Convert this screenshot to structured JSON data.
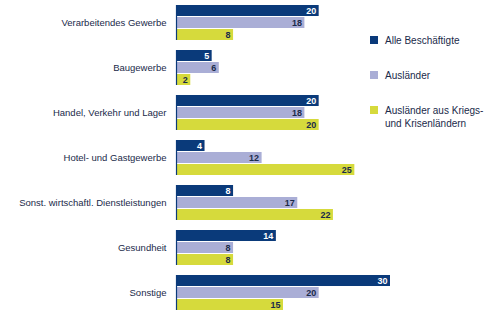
{
  "chart_data": {
    "type": "bar",
    "orientation": "horizontal",
    "categories": [
      "Verarbeitendes Gewerbe",
      "Baugewerbe",
      "Handel, Verkehr und Lager",
      "Hotel- und Gastgewerbe",
      "Sonst. wirtschaftl. Dienstleistungen",
      "Gesundheit",
      "Sonstige"
    ],
    "series": [
      {
        "name": "Alle Beschäftigte",
        "color": "#0a3a7a",
        "values": [
          20,
          5,
          20,
          4,
          8,
          14,
          30
        ]
      },
      {
        "name": "Ausländer",
        "color": "#aaaed6",
        "values": [
          18,
          6,
          18,
          12,
          17,
          8,
          20
        ]
      },
      {
        "name": "Ausländer aus Kriegs- und Krisenländern",
        "color": "#d6da3c",
        "values": [
          8,
          2,
          20,
          25,
          22,
          8,
          15
        ]
      }
    ],
    "xlim": [
      0,
      30
    ],
    "data_labels": true,
    "tick_labels": "y",
    "legend": "top-right",
    "grid": false
  }
}
